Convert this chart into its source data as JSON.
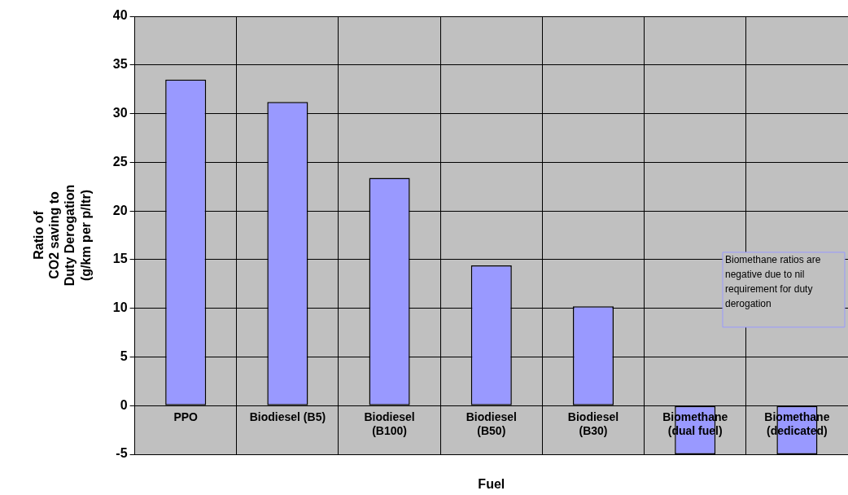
{
  "chart_data": {
    "type": "bar",
    "xlabel": "Fuel",
    "ylabel": "Ratio of\nCO2 saving to\nDuty Derogation\n(g/km per p/ltr)",
    "categories": [
      "PPO",
      "Biodiesel (B5)",
      "Biodiesel (B100)",
      "Biodiesel (B50)",
      "Biodiesel (B30)",
      "Biomethane (dual fuel)",
      "Biomethane (dedicated)"
    ],
    "values": [
      33.5,
      31.2,
      23.4,
      14.4,
      10.2,
      -5,
      -5
    ],
    "color": "#9999ff",
    "ylim": [
      -5,
      40
    ],
    "yticks": [
      -5,
      0,
      5,
      10,
      15,
      20,
      25,
      30,
      35,
      40
    ],
    "grid": true,
    "annotations": [
      "Biomethane ratios are negative due to nil requirement for duty derogation"
    ]
  }
}
